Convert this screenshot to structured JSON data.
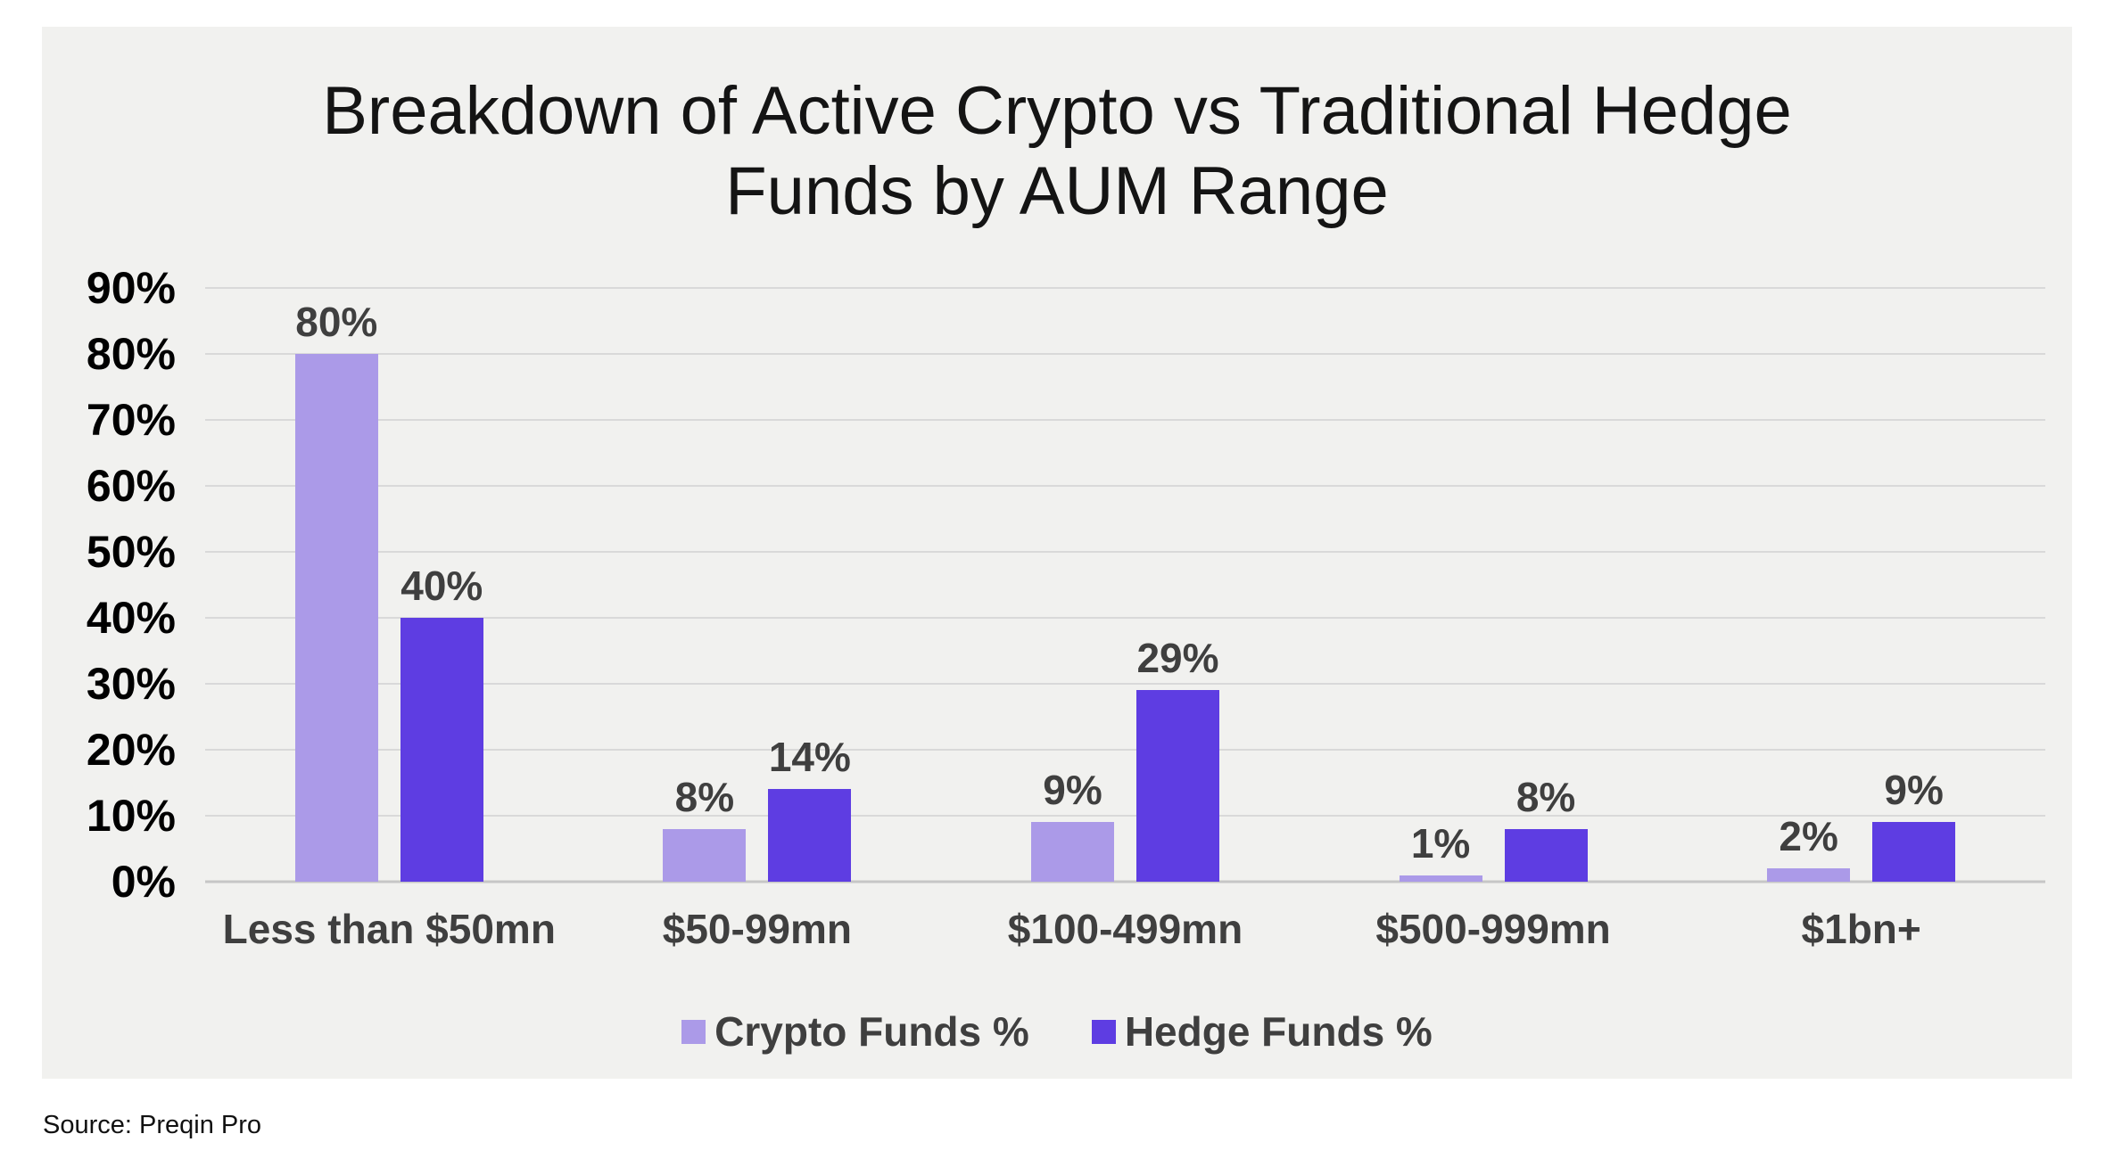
{
  "title": {
    "line1": "Breakdown of Active Crypto vs Traditional Hedge",
    "line2": "Funds by AUM Range"
  },
  "source": "Source: Preqin Pro",
  "colors": {
    "panel_background": "#f1f1ef",
    "gridline": "#d9d9d9",
    "axis_tick_text": "#000000",
    "label_text": "#3f3f3f",
    "crypto_funds": "#ab9ae8",
    "hedge_funds": "#5e3de2"
  },
  "chart_data": {
    "type": "bar",
    "title": "Breakdown of Active Crypto vs Traditional Hedge Funds by AUM Range",
    "categories": [
      "Less than $50mn",
      "$50-99mn",
      "$100-499mn",
      "$500-999mn",
      "$1bn+"
    ],
    "series": [
      {
        "name": "Crypto Funds %",
        "color": "#ab9ae8",
        "values": [
          80,
          8,
          9,
          1,
          2
        ],
        "labels": [
          "80%",
          "8%",
          "9%",
          "1%",
          "2%"
        ]
      },
      {
        "name": "Hedge Funds %",
        "color": "#5e3de2",
        "values": [
          40,
          14,
          29,
          8,
          9
        ],
        "labels": [
          "40%",
          "14%",
          "29%",
          "8%",
          "9%"
        ]
      }
    ],
    "y_ticks": [
      "90%",
      "80%",
      "70%",
      "60%",
      "50%",
      "40%",
      "30%",
      "20%",
      "10%",
      "0%"
    ],
    "ylim": [
      0,
      90
    ],
    "xlabel": "",
    "ylabel": "",
    "grid": true,
    "legend_position": "bottom",
    "data_labels": true
  }
}
